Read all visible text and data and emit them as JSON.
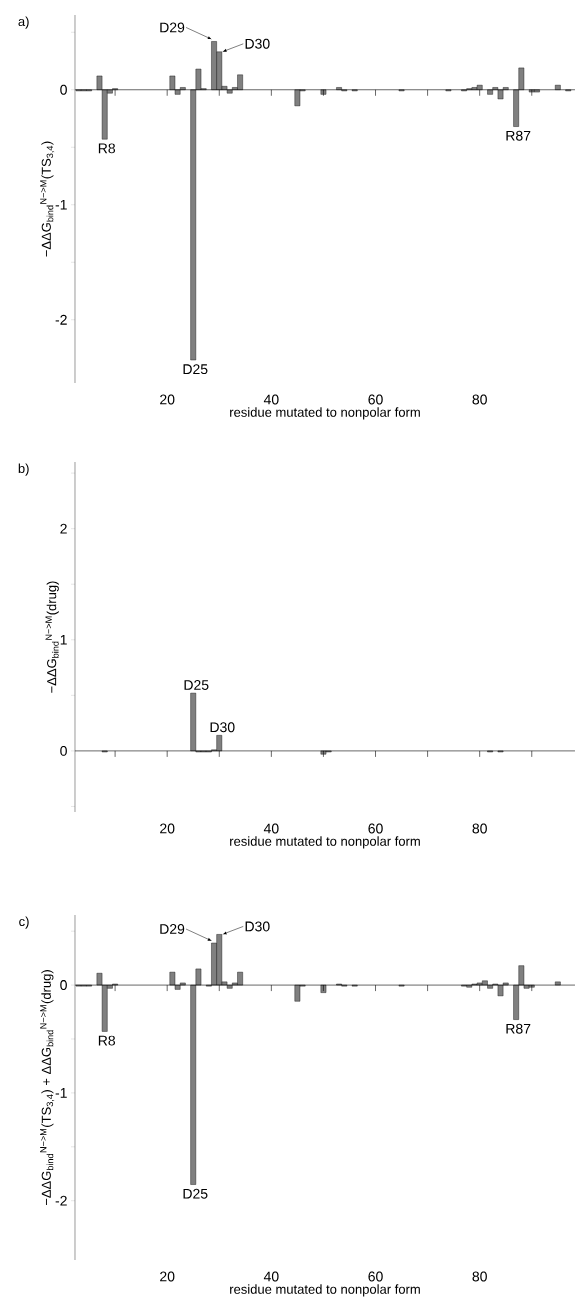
{
  "chart_data": [
    {
      "type": "bar",
      "title": "a)",
      "xlabel": "residue mutated to nonpolar form",
      "ylabel": "−ΔΔG$_{bind}$$^{N−>M}$(TS$_{3,4}$)",
      "color": "#808080",
      "x": [
        3,
        4,
        5,
        7,
        8,
        9,
        10,
        21,
        22,
        23,
        25,
        26,
        27,
        29,
        30,
        31,
        32,
        33,
        34,
        45,
        46,
        50,
        53,
        54,
        56,
        65,
        74,
        77,
        78,
        79,
        80,
        82,
        83,
        84,
        85,
        87,
        88,
        90,
        91,
        95,
        97
      ],
      "values": [
        -0.01,
        -0.01,
        -0.01,
        0.12,
        -0.43,
        -0.03,
        0.01,
        0.12,
        -0.04,
        0.02,
        -2.35,
        0.18,
        0.01,
        0.42,
        0.33,
        0.03,
        -0.03,
        0.02,
        0.13,
        -0.14,
        -0.01,
        -0.04,
        0.02,
        -0.01,
        -0.01,
        -0.01,
        -0.01,
        -0.01,
        0.01,
        0.02,
        0.04,
        -0.04,
        0.02,
        -0.08,
        0.02,
        -0.32,
        0.19,
        -0.02,
        -0.02,
        0.04,
        -0.01
      ],
      "xlim": [
        2.3,
        98.3
      ],
      "ylim": [
        -2.55,
        0.65
      ],
      "xticks": [
        {
          "value": 10,
          "label": null
        },
        20,
        {
          "value": 30,
          "label": null
        },
        40,
        {
          "value": 50,
          "label": null
        },
        60,
        {
          "value": 70,
          "label": null
        },
        80,
        {
          "value": 90,
          "label": null
        }
      ],
      "yticks": [
        -2,
        {
          "value": -1.5,
          "label": null
        },
        -1,
        {
          "value": -0.5,
          "label": null
        },
        0,
        {
          "value": 0.5,
          "label": null
        }
      ],
      "annotations": [
        {
          "text": "R8",
          "x": 8,
          "y": -0.43
        },
        {
          "text": "D25",
          "x": 25,
          "y": -2.35
        },
        {
          "text": "D29",
          "x": 29,
          "y": 0.42
        },
        {
          "text": "D30",
          "x": 30,
          "y": 0.33
        },
        {
          "text": "R87",
          "x": 87,
          "y": -0.32
        }
      ]
    },
    {
      "type": "bar",
      "title": "b)",
      "xlabel": "residue mutated to nonpolar form",
      "ylabel": "−ΔΔG$_{bind}$$^{N−>M}$(drug)",
      "color": "#808080",
      "x": [
        8,
        25,
        26,
        27,
        28,
        29,
        30,
        50,
        51,
        82,
        84
      ],
      "values": [
        -0.01,
        0.52,
        -0.01,
        -0.01,
        -0.01,
        0.01,
        0.14,
        -0.03,
        -0.01,
        -0.01,
        -0.01
      ],
      "xlim": [
        2.3,
        98.3
      ],
      "ylim": [
        -0.55,
        2.6
      ],
      "xticks": [
        {
          "value": 10,
          "label": null
        },
        20,
        {
          "value": 30,
          "label": null
        },
        40,
        {
          "value": 50,
          "label": null
        },
        60,
        {
          "value": 70,
          "label": null
        },
        80,
        {
          "value": 90,
          "label": null
        }
      ],
      "yticks": [
        {
          "value": -0.5,
          "label": null
        },
        0,
        {
          "value": 0.5,
          "label": null
        },
        1,
        {
          "value": 1.5,
          "label": null
        },
        2,
        {
          "value": 2.5,
          "label": null
        }
      ],
      "annotations": [
        {
          "text": "D25",
          "x": 25,
          "y": 0.52
        },
        {
          "text": "D30",
          "x": 30,
          "y": 0.14
        }
      ]
    },
    {
      "type": "bar",
      "title": "c)",
      "xlabel": "residue mutated to nonpolar form",
      "ylabel": "−ΔΔG$_{bind}$$^{N−>M}$(TS$_{3,4}$) + ΔΔG$_{bind}$$^{N−>M}$(drug)",
      "color": "#808080",
      "x": [
        3,
        4,
        5,
        7,
        8,
        9,
        10,
        21,
        22,
        23,
        25,
        26,
        28,
        29,
        30,
        31,
        32,
        33,
        34,
        45,
        46,
        50,
        53,
        54,
        56,
        65,
        77,
        78,
        79,
        80,
        81,
        82,
        83,
        84,
        85,
        87,
        88,
        89,
        90,
        95
      ],
      "values": [
        -0.01,
        -0.01,
        -0.01,
        0.11,
        -0.43,
        -0.03,
        0.01,
        0.12,
        -0.04,
        0.02,
        -1.85,
        0.15,
        -0.01,
        0.39,
        0.47,
        0.03,
        -0.03,
        0.02,
        0.12,
        -0.15,
        -0.01,
        -0.07,
        0.01,
        -0.01,
        -0.01,
        -0.01,
        -0.01,
        -0.02,
        0.01,
        0.02,
        0.04,
        -0.03,
        0.01,
        -0.1,
        0.02,
        -0.32,
        0.18,
        -0.03,
        -0.02,
        0.03
      ],
      "xlim": [
        2.3,
        98.3
      ],
      "ylim": [
        -2.55,
        0.65
      ],
      "xticks": [
        {
          "value": 10,
          "label": null
        },
        20,
        {
          "value": 30,
          "label": null
        },
        40,
        {
          "value": 50,
          "label": null
        },
        60,
        {
          "value": 70,
          "label": null
        },
        80,
        {
          "value": 90,
          "label": null
        }
      ],
      "yticks": [
        -2,
        {
          "value": -1.5,
          "label": null
        },
        -1,
        {
          "value": -0.5,
          "label": null
        },
        0,
        {
          "value": 0.5,
          "label": null
        }
      ],
      "annotations": [
        {
          "text": "R8",
          "x": 8,
          "y": -0.43
        },
        {
          "text": "D25",
          "x": 25,
          "y": -1.85
        },
        {
          "text": "D29",
          "x": 29,
          "y": 0.39
        },
        {
          "text": "D30",
          "x": 30,
          "y": 0.47
        },
        {
          "text": "R87",
          "x": 87,
          "y": -0.32
        }
      ]
    }
  ]
}
